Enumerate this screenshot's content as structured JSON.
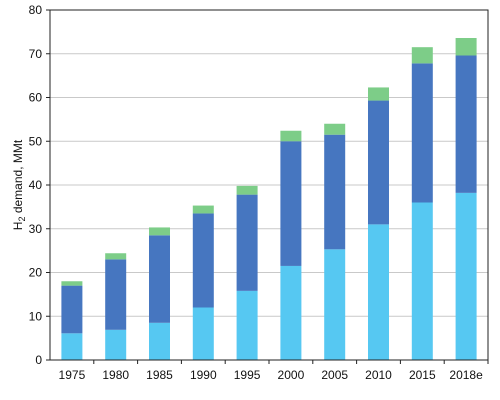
{
  "chart_data": {
    "type": "bar",
    "stacked": true,
    "categories": [
      "1975",
      "1980",
      "1985",
      "1990",
      "1995",
      "2000",
      "2005",
      "2010",
      "2015",
      "2018e"
    ],
    "series": [
      {
        "color": "#56c8f2",
        "values": [
          6.1,
          6.9,
          8.5,
          12.0,
          15.8,
          21.5,
          25.3,
          31.0,
          36.0,
          38.2
        ]
      },
      {
        "color": "#4676c0",
        "values": [
          10.9,
          16.1,
          20.0,
          21.5,
          22.0,
          28.5,
          26.2,
          28.3,
          31.8,
          31.4
        ]
      },
      {
        "color": "#7dcd88",
        "values": [
          1.0,
          1.4,
          1.8,
          1.8,
          2.0,
          2.4,
          2.5,
          3.0,
          3.7,
          4.0
        ]
      }
    ],
    "ylabel_main": "H",
    "ylabel_sub": "2",
    "ylabel_rest": " demand, MMt",
    "ylim": [
      0,
      80
    ],
    "yticks": [
      "0",
      "10",
      "20",
      "30",
      "40",
      "50",
      "60",
      "70",
      "80"
    ],
    "grid": true,
    "legend": "none"
  }
}
